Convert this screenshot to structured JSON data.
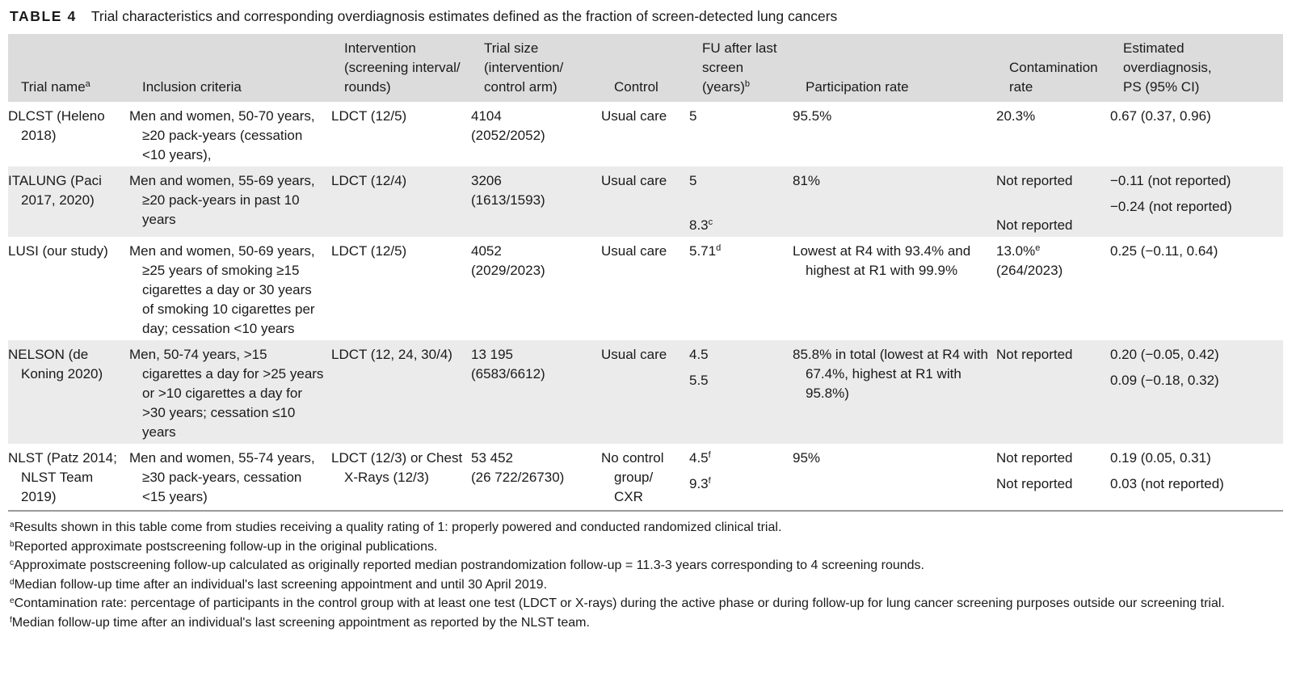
{
  "caption": {
    "label": "TABLE 4",
    "text": "Trial characteristics and corresponding overdiagnosis estimates defined as the fraction of screen-detected lung cancers"
  },
  "headers": {
    "trial": "Trial name",
    "trial_sup": "a",
    "inclusion": "Inclusion criteria",
    "intervention": [
      "Intervention",
      "(screening interval/",
      "rounds)"
    ],
    "size": [
      "Trial size",
      "(intervention/",
      "control arm)"
    ],
    "control": "Control",
    "fu": [
      "FU after last",
      "screen",
      "(years)"
    ],
    "fu_sup": "b",
    "participation": "Participation rate",
    "contamination": [
      "Contamination",
      "rate"
    ],
    "estimate": [
      "Estimated",
      "overdiagnosis,",
      "PS (95% CI)"
    ]
  },
  "rows": [
    {
      "trial": "DLCST (Heleno 2018)",
      "inclusion": "Men and women, 50-70 years, ≥20 pack-years (cessation <10 years),",
      "intervention": "LDCT (12/5)",
      "size": [
        "4104",
        "(2052/2052)"
      ],
      "control": "Usual care",
      "fu": "5",
      "participation": "95.5%",
      "contamination": "20.3%",
      "estimate": "0.67 (0.37, 0.96)"
    },
    {
      "trial": "ITALUNG (Paci 2017, 2020)",
      "inclusion": "Men and women, 55-69 years, ≥20 pack-years in past 10 years",
      "intervention": "LDCT (12/4)",
      "size": [
        "3206",
        "(1613/1593)"
      ],
      "control": "Usual care",
      "fu": "5",
      "fu2": "8.3",
      "fu2_sup": "c",
      "participation": "81%",
      "contamination": "Not reported",
      "contamination2": "Not reported",
      "estimate": "−0.11 (not reported)",
      "estimate2": "−0.24 (not reported)"
    },
    {
      "trial": "LUSI (our study)",
      "inclusion": "Men and women, 50-69 years, ≥25 years of smoking ≥15 cigarettes a day or 30 years of smoking 10 cigarettes per day; cessation <10 years",
      "intervention": "LDCT (12/5)",
      "size": [
        "4052",
        "(2029/2023)"
      ],
      "control": "Usual care",
      "fu": "5.71",
      "fu_sup": "d",
      "participation": "Lowest at R4 with 93.4% and highest at R1 with 99.9%",
      "contamination": "13.0%",
      "contamination_sup": "e",
      "contamination_b": "(264/2023)",
      "estimate": "0.25 (−0.11, 0.64)"
    },
    {
      "trial": "NELSON (de Koning 2020)",
      "inclusion": "Men, 50-74 years, >15 cigarettes a day for >25 years or >10 cigarettes a day for >30 years; cessation ≤10 years",
      "intervention": "LDCT (12, 24, 30/4)",
      "size": [
        "13 195",
        "(6583/6612)"
      ],
      "control": "Usual care",
      "fu": "4.5",
      "fu2": "5.5",
      "participation": "85.8% in total (lowest at R4 with 67.4%, highest at R1 with 95.8%)",
      "contamination": "Not reported",
      "estimate": "0.20 (−0.05, 0.42)",
      "estimate2": "0.09 (−0.18, 0.32)"
    },
    {
      "trial": "NLST (Patz 2014; NLST Team 2019)",
      "inclusion": "Men and women, 55-74 years, ≥30 pack-years, cessation <15 years)",
      "intervention": "LDCT (12/3) or Chest X-Rays (12/3)",
      "size": [
        "53 452",
        "(26 722/26730)"
      ],
      "control": "No control group/ CXR",
      "fu": "4.5",
      "fu_sup": "f",
      "fu2": "9.3",
      "fu2_sup": "f",
      "participation": "95%",
      "contamination": "Not reported",
      "contamination2": "Not reported",
      "estimate": "0.19 (0.05, 0.31)",
      "estimate2": "0.03 (not reported)"
    }
  ],
  "footnotes": [
    {
      "mark": "a",
      "text": "Results shown in this table come from studies receiving a quality rating of 1: properly powered and conducted randomized clinical trial."
    },
    {
      "mark": "b",
      "text": "Reported approximate postscreening follow-up in the original publications."
    },
    {
      "mark": "c",
      "text": "Approximate postscreening follow-up calculated as originally reported median postrandomization follow-up = 11.3-3 years corresponding to 4 screening rounds."
    },
    {
      "mark": "d",
      "text": "Median follow-up time after an individual's last screening appointment and until 30 April 2019."
    },
    {
      "mark": "e",
      "text": "Contamination rate: percentage of participants in the control group with at least one test (LDCT or X-rays) during the active phase or during follow-up for lung cancer screening purposes outside our screening trial."
    },
    {
      "mark": "f",
      "text": "Median follow-up time after an individual's last screening appointment as reported by the NLST team."
    }
  ]
}
